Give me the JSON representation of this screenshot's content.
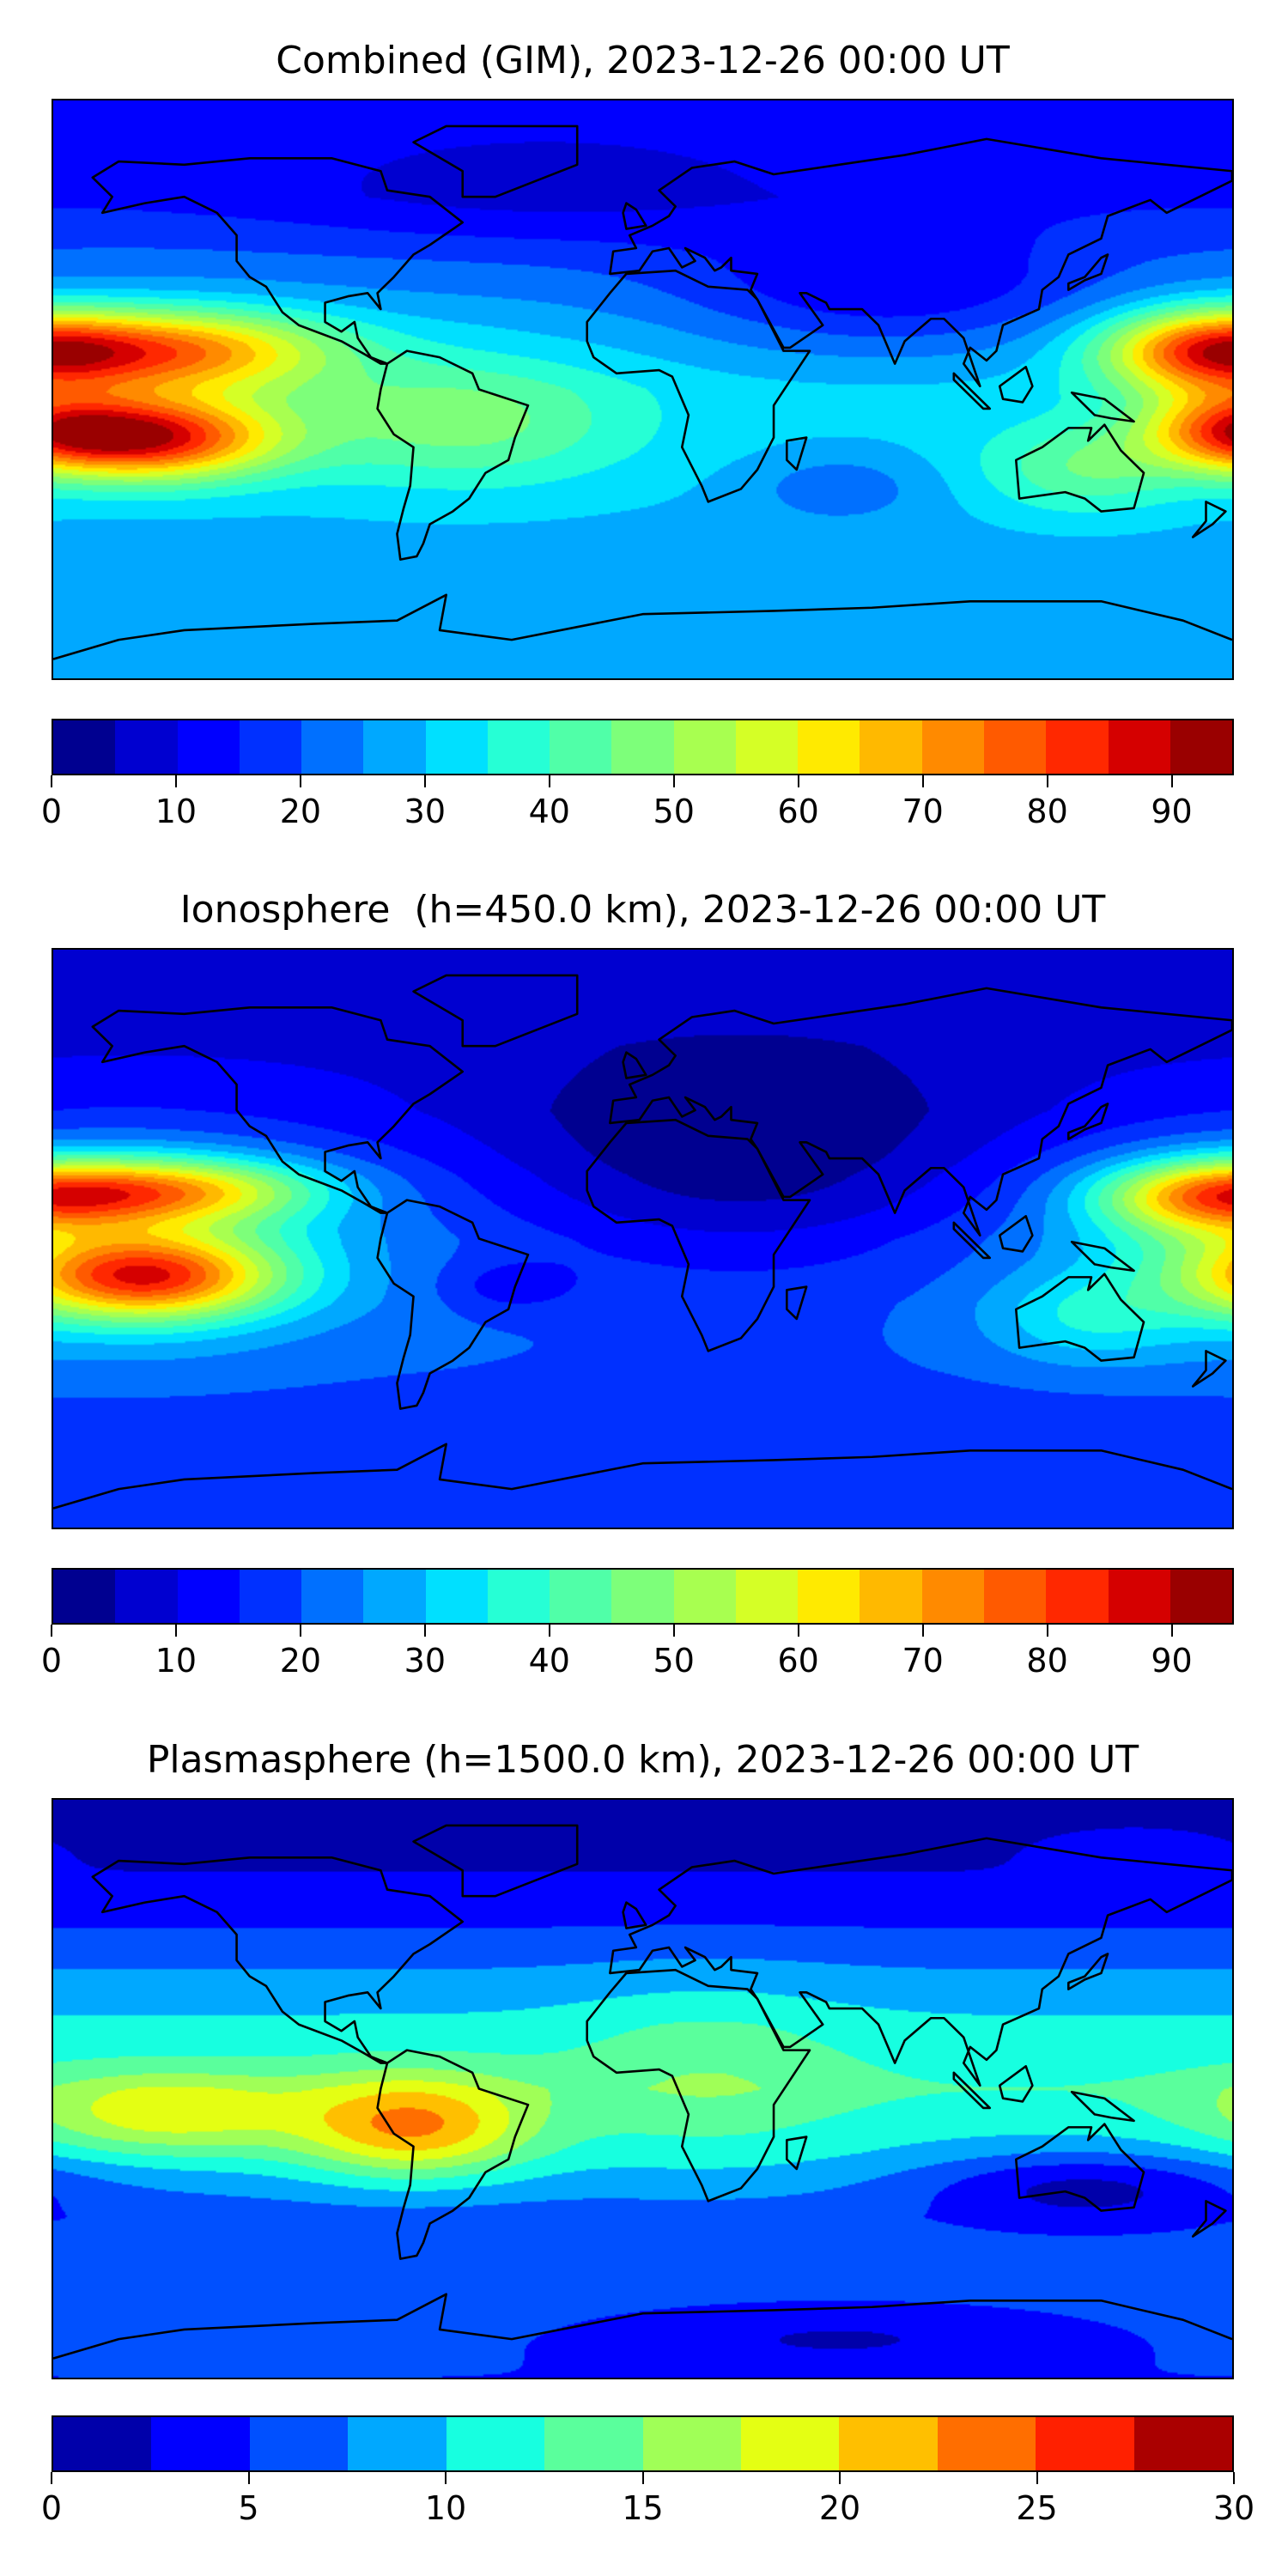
{
  "chart_data": [
    {
      "type": "heatmap",
      "title": "Combined (GIM), 2023-12-26 00:00 UT",
      "projection": "plate-carree",
      "lon_range": [
        -180,
        180
      ],
      "lat_range": [
        -90,
        90
      ],
      "levels": {
        "min": 0,
        "max": 95,
        "step": 5
      },
      "colorbar_ticks": [
        0,
        10,
        20,
        30,
        40,
        50,
        60,
        70,
        80,
        90
      ],
      "colors": [
        "#000090",
        "#0000d0",
        "#0000ff",
        "#0030ff",
        "#0070ff",
        "#00a8ff",
        "#00e0ff",
        "#26ffd5",
        "#50ffa8",
        "#7dff7a",
        "#a8ff50",
        "#d5ff26",
        "#ffea00",
        "#ffb900",
        "#ff8a00",
        "#ff5a00",
        "#ff2800",
        "#d50000",
        "#9a0000"
      ],
      "field_model": {
        "base_by_lat": [
          [
            90,
            12
          ],
          [
            60,
            14
          ],
          [
            40,
            22
          ],
          [
            20,
            28
          ],
          [
            0,
            32
          ],
          [
            -20,
            31
          ],
          [
            -40,
            29
          ],
          [
            -60,
            27
          ],
          [
            -90,
            25
          ]
        ],
        "features": [
          {
            "lon": -152,
            "lat": -15,
            "slon": 28,
            "slat": 9,
            "amp": 58
          },
          {
            "lon": -145,
            "lat": 12,
            "slon": 35,
            "slat": 9,
            "amp": 45
          },
          {
            "lon": 172,
            "lat": 12,
            "slon": 22,
            "slat": 9,
            "amp": 40
          },
          {
            "lon": 178,
            "lat": -12,
            "slon": 18,
            "slat": 8,
            "amp": 25
          },
          {
            "lon": -55,
            "lat": -10,
            "slon": 35,
            "slat": 14,
            "amp": 16
          },
          {
            "lon": 75,
            "lat": 30,
            "slon": 45,
            "slat": 14,
            "amp": -14
          },
          {
            "lon": -30,
            "lat": 60,
            "slon": 60,
            "slat": 14,
            "amp": -6
          },
          {
            "lon": 135,
            "lat": -25,
            "slon": 22,
            "slat": 10,
            "amp": 14
          },
          {
            "lon": 60,
            "lat": -30,
            "slon": 20,
            "slat": 8,
            "amp": -8
          }
        ]
      }
    },
    {
      "type": "heatmap",
      "title": "Ionosphere  (h=450.0 km), 2023-12-26 00:00 UT",
      "projection": "plate-carree",
      "lon_range": [
        -180,
        180
      ],
      "lat_range": [
        -90,
        90
      ],
      "levels": {
        "min": 0,
        "max": 95,
        "step": 5
      },
      "colorbar_ticks": [
        0,
        10,
        20,
        30,
        40,
        50,
        60,
        70,
        80,
        90
      ],
      "colors": [
        "#000090",
        "#0000d0",
        "#0000ff",
        "#0030ff",
        "#0070ff",
        "#00a8ff",
        "#00e0ff",
        "#26ffd5",
        "#50ffa8",
        "#7dff7a",
        "#a8ff50",
        "#d5ff26",
        "#ffea00",
        "#ffb900",
        "#ff8a00",
        "#ff5a00",
        "#ff2800",
        "#d50000",
        "#9a0000"
      ],
      "field_model": {
        "base_by_lat": [
          [
            90,
            9
          ],
          [
            60,
            9
          ],
          [
            40,
            12
          ],
          [
            20,
            18
          ],
          [
            0,
            22
          ],
          [
            -20,
            22
          ],
          [
            -40,
            20
          ],
          [
            -60,
            17
          ],
          [
            -90,
            15
          ]
        ],
        "features": [
          {
            "lon": -152,
            "lat": -12,
            "slon": 28,
            "slat": 9,
            "amp": 50
          },
          {
            "lon": -145,
            "lat": 15,
            "slon": 32,
            "slat": 7,
            "amp": 38
          },
          {
            "lon": 172,
            "lat": 13,
            "slon": 24,
            "slat": 8,
            "amp": 36
          },
          {
            "lon": -160,
            "lat": 0,
            "slon": 45,
            "slat": 22,
            "amp": 18
          },
          {
            "lon": 30,
            "lat": 22,
            "slon": 55,
            "slat": 25,
            "amp": -16
          },
          {
            "lon": -40,
            "lat": -15,
            "slon": 15,
            "slat": 6,
            "amp": -8
          },
          {
            "lon": 135,
            "lat": -25,
            "slon": 22,
            "slat": 10,
            "amp": 12
          }
        ]
      }
    },
    {
      "type": "heatmap",
      "title": "Plasmasphere (h=1500.0 km), 2023-12-26 00:00 UT",
      "projection": "plate-carree",
      "lon_range": [
        -180,
        180
      ],
      "lat_range": [
        -90,
        90
      ],
      "levels": {
        "min": 0,
        "max": 30,
        "step": 2.5
      },
      "colorbar_ticks": [
        0,
        5,
        10,
        15,
        20,
        25,
        30
      ],
      "colors": [
        "#0000aa",
        "#0000ff",
        "#0050ff",
        "#00a8ff",
        "#17ffe0",
        "#5aff9c",
        "#a0ff57",
        "#e4ff13",
        "#ffbf00",
        "#ff6e00",
        "#ff2000",
        "#aa0000"
      ],
      "field_model": {
        "base_by_lat": [
          [
            90,
            1
          ],
          [
            60,
            3
          ],
          [
            40,
            7
          ],
          [
            20,
            10.5
          ],
          [
            0,
            12.5
          ],
          [
            -20,
            10
          ],
          [
            -40,
            6
          ],
          [
            -60,
            5.5
          ],
          [
            -90,
            5
          ]
        ],
        "features": [
          {
            "lon": -70,
            "lat": -12,
            "slon": 25,
            "slat": 11,
            "amp": 12
          },
          {
            "lon": -145,
            "lat": -8,
            "slon": 30,
            "slat": 9,
            "amp": 8
          },
          {
            "lon": 20,
            "lat": 5,
            "slon": 30,
            "slat": 20,
            "amp": 3
          },
          {
            "lon": 135,
            "lat": -30,
            "slon": 35,
            "slat": 8,
            "amp": -6
          },
          {
            "lon": 60,
            "lat": -78,
            "slon": 40,
            "slat": 6,
            "amp": -3
          },
          {
            "lon": 150,
            "lat": 75,
            "slon": 20,
            "slat": 5,
            "amp": 2
          }
        ]
      }
    }
  ]
}
